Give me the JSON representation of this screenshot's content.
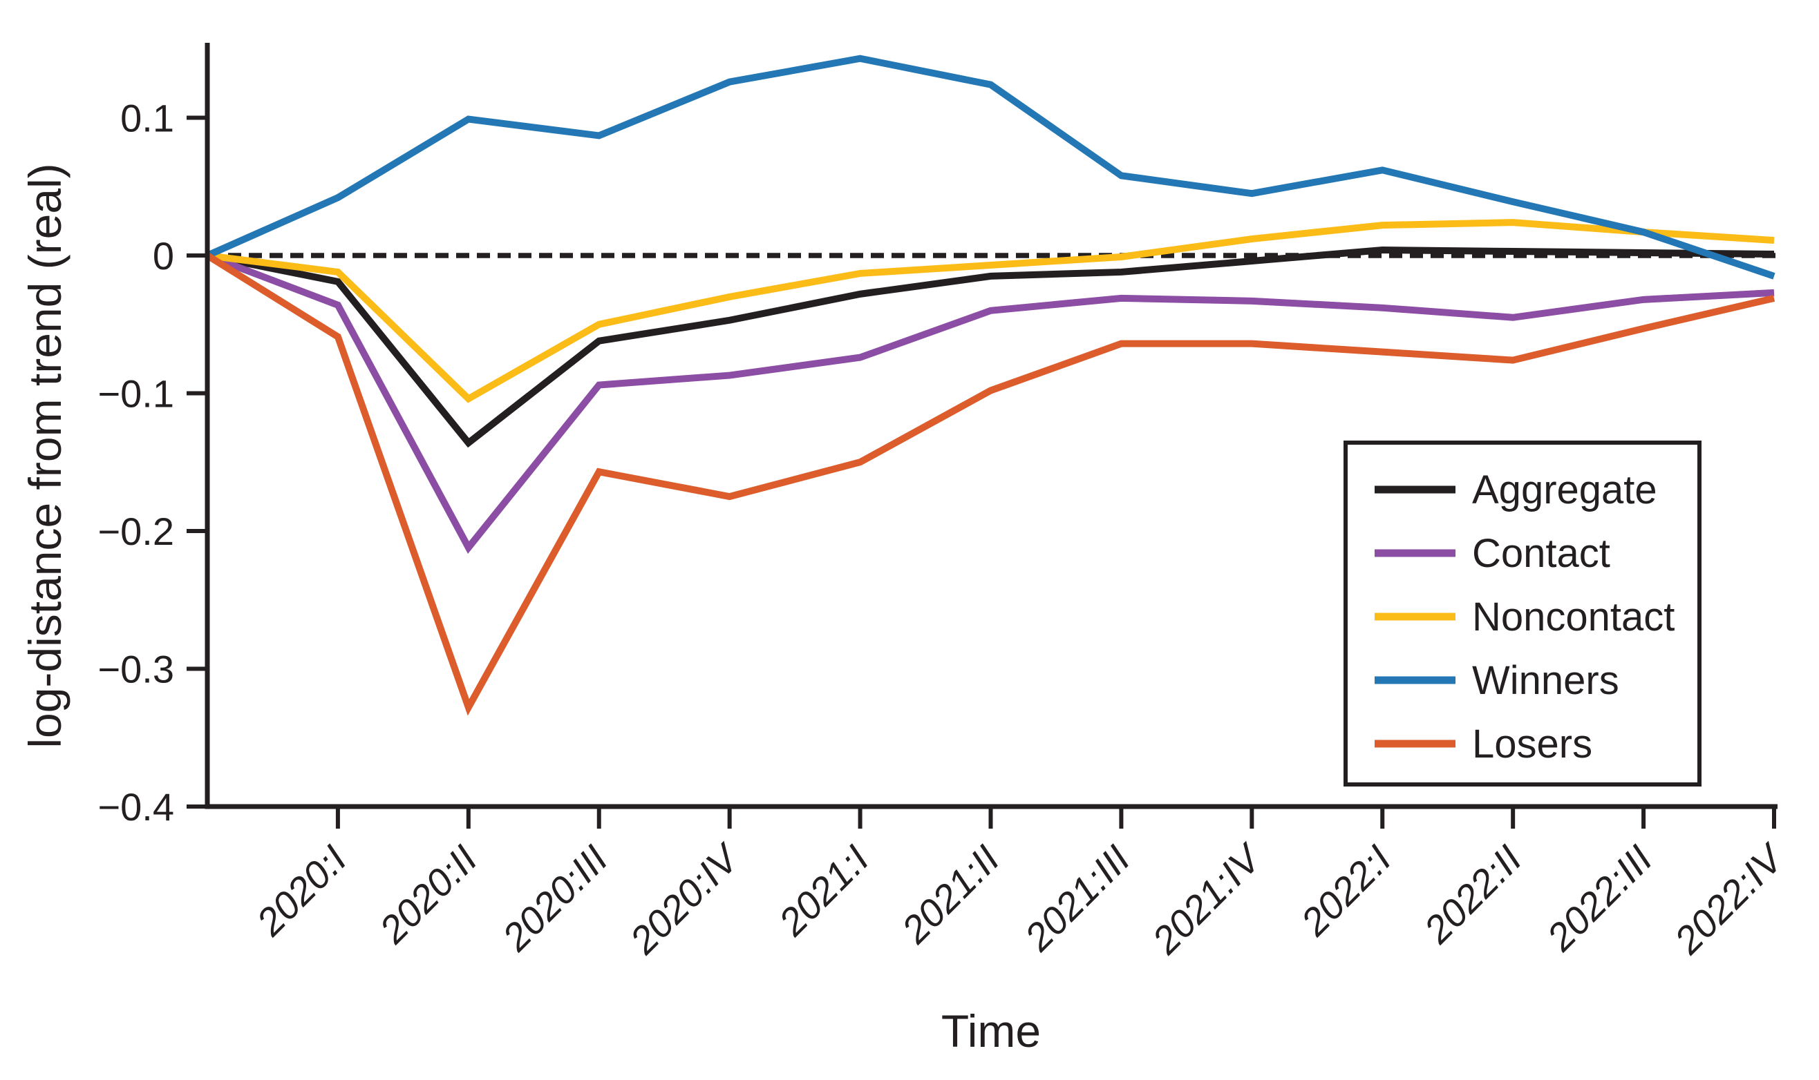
{
  "figure": {
    "background": "#ffffff",
    "axis_color": "#231F20",
    "xlabel": "Time",
    "ylabel": "log-distance from trend (real)"
  },
  "chart_data": {
    "type": "line",
    "title": "",
    "xlabel": "Time",
    "ylabel": "log-distance from trend (real)",
    "x_tick_labels": [
      "2020:I",
      "2020:II",
      "2020:III",
      "2020:IV",
      "2021:I",
      "2021:II",
      "2021:III",
      "2021:IV",
      "2022:I",
      "2022:II",
      "2022:III",
      "2022:IV"
    ],
    "x_note": "all series start at value 0 on the y-axis one quarter before 2020:I",
    "ylim": [
      -0.4,
      0.155
    ],
    "yticks": [
      0.1,
      0,
      -0.1,
      -0.2,
      -0.3,
      -0.4
    ],
    "ytick_labels": [
      "0.1",
      "0",
      "−0.1",
      "−0.2",
      "−0.3",
      "−0.4"
    ],
    "zero_reference_line": {
      "style": "dashed",
      "value": 0,
      "color": "#231F20"
    },
    "grid": false,
    "legend_position": "right-center-box",
    "series": [
      {
        "name": "Aggregate",
        "color": "#231F20",
        "values": [
          0,
          -0.019,
          -0.136,
          -0.062,
          -0.047,
          -0.028,
          -0.015,
          -0.012,
          -0.004,
          0.004,
          0.003,
          0.002,
          0.001
        ]
      },
      {
        "name": "Contact",
        "color": "#8C4DA4",
        "values": [
          0,
          -0.036,
          -0.212,
          -0.094,
          -0.087,
          -0.074,
          -0.04,
          -0.031,
          -0.033,
          -0.038,
          -0.045,
          -0.032,
          -0.027
        ]
      },
      {
        "name": "Noncontact",
        "color": "#FBBC18",
        "values": [
          0,
          -0.012,
          -0.104,
          -0.05,
          -0.03,
          -0.013,
          -0.007,
          -0.001,
          0.012,
          0.022,
          0.024,
          0.017,
          0.011
        ]
      },
      {
        "name": "Winners",
        "color": "#2277B4",
        "values": [
          0,
          0.042,
          0.099,
          0.087,
          0.126,
          0.143,
          0.124,
          0.058,
          0.045,
          0.062,
          0.039,
          0.017,
          -0.015
        ]
      },
      {
        "name": "Losers",
        "color": "#DC5C2B",
        "values": [
          0,
          -0.059,
          -0.328,
          -0.157,
          -0.175,
          -0.15,
          -0.098,
          -0.064,
          -0.064,
          -0.07,
          -0.076,
          -0.053,
          -0.031
        ]
      }
    ]
  }
}
